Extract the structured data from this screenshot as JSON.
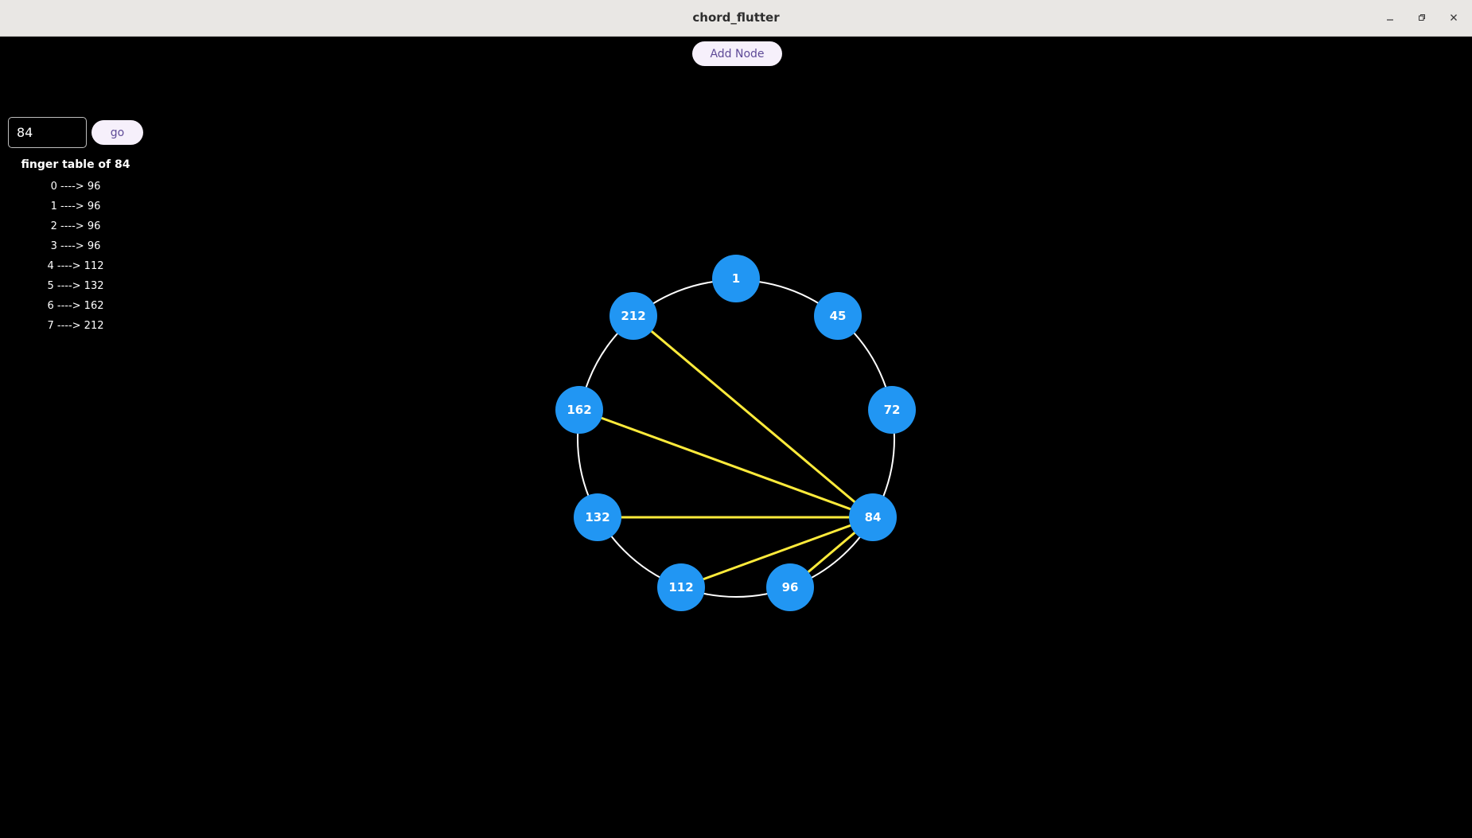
{
  "window": {
    "title": "chord_flutter"
  },
  "toolbar": {
    "add_node_label": "Add Node"
  },
  "lookup": {
    "input_value": "84",
    "go_label": "go"
  },
  "finger_table": {
    "title": "finger table of 84",
    "rows": [
      "0 ----> 96",
      "1 ----> 96",
      "2 ----> 96",
      "3 ----> 96",
      "4 ----> 112",
      "5 ----> 132",
      "6 ----> 162",
      "7 ----> 212"
    ]
  },
  "ring": {
    "nodes": [
      {
        "id": "1",
        "label": "1"
      },
      {
        "id": "45",
        "label": "45"
      },
      {
        "id": "72",
        "label": "72"
      },
      {
        "id": "84",
        "label": "84"
      },
      {
        "id": "96",
        "label": "96"
      },
      {
        "id": "112",
        "label": "112"
      },
      {
        "id": "132",
        "label": "132"
      },
      {
        "id": "162",
        "label": "162"
      },
      {
        "id": "212",
        "label": "212"
      }
    ],
    "selected_node": "84",
    "finger_targets": [
      "96",
      "112",
      "132",
      "162",
      "212"
    ]
  },
  "colors": {
    "node_fill": "#2196f3",
    "finger_line": "#ffeb3b",
    "ring_stroke": "#ffffff",
    "background": "#000000"
  }
}
